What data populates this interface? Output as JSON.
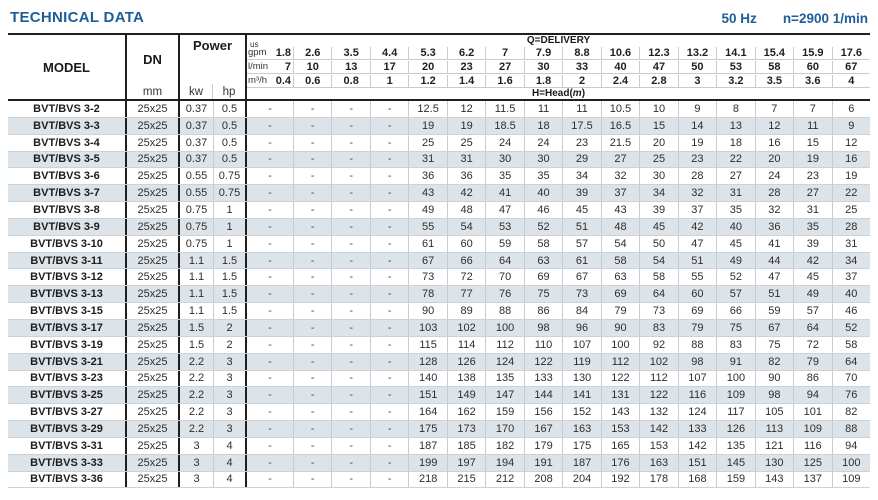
{
  "title": "TECHNICAL DATA",
  "frequency": "50 Hz",
  "speed": "n=2900 1/min",
  "colors": {
    "accent": "#1d5d9b",
    "alt_row": "#dce3e9",
    "border_dark": "#1f1f1f",
    "border_light": "#c7ccd1"
  },
  "table": {
    "model_header": "MODEL",
    "dn_header": "DN",
    "dn_unit": "mm",
    "power_header": "Power",
    "power_unit_kw": "kw",
    "power_unit_hp": "hp",
    "delivery_header": "Q=DELIVERY",
    "head_label": {
      "prefix": "H=Head(",
      "unit": "m",
      "suffix": ")"
    },
    "delivery_rows": [
      {
        "unit_lines": [
          "us",
          "gpm"
        ],
        "values": [
          "1.8",
          "2.6",
          "3.5",
          "4.4",
          "5.3",
          "6.2",
          "7",
          "7.9",
          "8.8",
          "10.6",
          "12.3",
          "13.2",
          "14.1",
          "15.4",
          "15.9",
          "17.6"
        ]
      },
      {
        "unit_lines": [
          "l/min"
        ],
        "values": [
          "7",
          "10",
          "13",
          "17",
          "20",
          "23",
          "27",
          "30",
          "33",
          "40",
          "47",
          "50",
          "53",
          "58",
          "60",
          "67"
        ]
      },
      {
        "unit_lines": [
          "m³/h"
        ],
        "values": [
          "0.4",
          "0.6",
          "0.8",
          "1",
          "1.2",
          "1.4",
          "1.6",
          "1.8",
          "2",
          "2.4",
          "2.8",
          "3",
          "3.2",
          "3.5",
          "3.6",
          "4"
        ]
      }
    ],
    "rows": [
      {
        "model": "BVT/BVS 3-2",
        "dn": "25x25",
        "kw": "0.37",
        "hp": "0.5",
        "heads": [
          "-",
          "-",
          "-",
          "-",
          "12.5",
          "12",
          "11.5",
          "11",
          "11",
          "10.5",
          "10",
          "9",
          "8",
          "7",
          "7",
          "6"
        ]
      },
      {
        "model": "BVT/BVS 3-3",
        "dn": "25x25",
        "kw": "0.37",
        "hp": "0.5",
        "heads": [
          "-",
          "-",
          "-",
          "-",
          "19",
          "19",
          "18.5",
          "18",
          "17.5",
          "16.5",
          "15",
          "14",
          "13",
          "12",
          "11",
          "9"
        ]
      },
      {
        "model": "BVT/BVS 3-4",
        "dn": "25x25",
        "kw": "0.37",
        "hp": "0.5",
        "heads": [
          "-",
          "-",
          "-",
          "-",
          "25",
          "25",
          "24",
          "24",
          "23",
          "21.5",
          "20",
          "19",
          "18",
          "16",
          "15",
          "12"
        ]
      },
      {
        "model": "BVT/BVS 3-5",
        "dn": "25x25",
        "kw": "0.37",
        "hp": "0.5",
        "heads": [
          "-",
          "-",
          "-",
          "-",
          "31",
          "31",
          "30",
          "30",
          "29",
          "27",
          "25",
          "23",
          "22",
          "20",
          "19",
          "16"
        ]
      },
      {
        "model": "BVT/BVS 3-6",
        "dn": "25x25",
        "kw": "0.55",
        "hp": "0.75",
        "heads": [
          "-",
          "-",
          "-",
          "-",
          "36",
          "36",
          "35",
          "35",
          "34",
          "32",
          "30",
          "28",
          "27",
          "24",
          "23",
          "19"
        ]
      },
      {
        "model": "BVT/BVS 3-7",
        "dn": "25x25",
        "kw": "0.55",
        "hp": "0.75",
        "heads": [
          "-",
          "-",
          "-",
          "-",
          "43",
          "42",
          "41",
          "40",
          "39",
          "37",
          "34",
          "32",
          "31",
          "28",
          "27",
          "22"
        ]
      },
      {
        "model": "BVT/BVS 3-8",
        "dn": "25x25",
        "kw": "0.75",
        "hp": "1",
        "heads": [
          "-",
          "-",
          "-",
          "-",
          "49",
          "48",
          "47",
          "46",
          "45",
          "43",
          "39",
          "37",
          "35",
          "32",
          "31",
          "25"
        ]
      },
      {
        "model": "BVT/BVS 3-9",
        "dn": "25x25",
        "kw": "0.75",
        "hp": "1",
        "heads": [
          "-",
          "-",
          "-",
          "-",
          "55",
          "54",
          "53",
          "52",
          "51",
          "48",
          "45",
          "42",
          "40",
          "36",
          "35",
          "28"
        ]
      },
      {
        "model": "BVT/BVS 3-10",
        "dn": "25x25",
        "kw": "0.75",
        "hp": "1",
        "heads": [
          "-",
          "-",
          "-",
          "-",
          "61",
          "60",
          "59",
          "58",
          "57",
          "54",
          "50",
          "47",
          "45",
          "41",
          "39",
          "31"
        ]
      },
      {
        "model": "BVT/BVS 3-11",
        "dn": "25x25",
        "kw": "1.1",
        "hp": "1.5",
        "heads": [
          "-",
          "-",
          "-",
          "-",
          "67",
          "66",
          "64",
          "63",
          "61",
          "58",
          "54",
          "51",
          "49",
          "44",
          "42",
          "34"
        ]
      },
      {
        "model": "BVT/BVS 3-12",
        "dn": "25x25",
        "kw": "1.1",
        "hp": "1.5",
        "heads": [
          "-",
          "-",
          "-",
          "-",
          "73",
          "72",
          "70",
          "69",
          "67",
          "63",
          "58",
          "55",
          "52",
          "47",
          "45",
          "37"
        ]
      },
      {
        "model": "BVT/BVS 3-13",
        "dn": "25x25",
        "kw": "1.1",
        "hp": "1.5",
        "heads": [
          "-",
          "-",
          "-",
          "-",
          "78",
          "77",
          "76",
          "75",
          "73",
          "69",
          "64",
          "60",
          "57",
          "51",
          "49",
          "40"
        ]
      },
      {
        "model": "BVT/BVS 3-15",
        "dn": "25x25",
        "kw": "1.1",
        "hp": "1.5",
        "heads": [
          "-",
          "-",
          "-",
          "-",
          "90",
          "89",
          "88",
          "86",
          "84",
          "79",
          "73",
          "69",
          "66",
          "59",
          "57",
          "46"
        ]
      },
      {
        "model": "BVT/BVS 3-17",
        "dn": "25x25",
        "kw": "1.5",
        "hp": "2",
        "heads": [
          "-",
          "-",
          "-",
          "-",
          "103",
          "102",
          "100",
          "98",
          "96",
          "90",
          "83",
          "79",
          "75",
          "67",
          "64",
          "52"
        ]
      },
      {
        "model": "BVT/BVS 3-19",
        "dn": "25x25",
        "kw": "1.5",
        "hp": "2",
        "heads": [
          "-",
          "-",
          "-",
          "-",
          "115",
          "114",
          "112",
          "110",
          "107",
          "100",
          "92",
          "88",
          "83",
          "75",
          "72",
          "58"
        ]
      },
      {
        "model": "BVT/BVS 3-21",
        "dn": "25x25",
        "kw": "2.2",
        "hp": "3",
        "heads": [
          "-",
          "-",
          "-",
          "-",
          "128",
          "126",
          "124",
          "122",
          "119",
          "112",
          "102",
          "98",
          "91",
          "82",
          "79",
          "64"
        ]
      },
      {
        "model": "BVT/BVS 3-23",
        "dn": "25x25",
        "kw": "2.2",
        "hp": "3",
        "heads": [
          "-",
          "-",
          "-",
          "-",
          "140",
          "138",
          "135",
          "133",
          "130",
          "122",
          "112",
          "107",
          "100",
          "90",
          "86",
          "70"
        ]
      },
      {
        "model": "BVT/BVS 3-25",
        "dn": "25x25",
        "kw": "2.2",
        "hp": "3",
        "heads": [
          "-",
          "-",
          "-",
          "-",
          "151",
          "149",
          "147",
          "144",
          "141",
          "131",
          "122",
          "116",
          "109",
          "98",
          "94",
          "76"
        ]
      },
      {
        "model": "BVT/BVS 3-27",
        "dn": "25x25",
        "kw": "2.2",
        "hp": "3",
        "heads": [
          "-",
          "-",
          "-",
          "-",
          "164",
          "162",
          "159",
          "156",
          "152",
          "143",
          "132",
          "124",
          "117",
          "105",
          "101",
          "82"
        ]
      },
      {
        "model": "BVT/BVS 3-29",
        "dn": "25x25",
        "kw": "2.2",
        "hp": "3",
        "heads": [
          "-",
          "-",
          "-",
          "-",
          "175",
          "173",
          "170",
          "167",
          "163",
          "153",
          "142",
          "133",
          "126",
          "113",
          "109",
          "88"
        ]
      },
      {
        "model": "BVT/BVS 3-31",
        "dn": "25x25",
        "kw": "3",
        "hp": "4",
        "heads": [
          "-",
          "-",
          "-",
          "-",
          "187",
          "185",
          "182",
          "179",
          "175",
          "165",
          "153",
          "142",
          "135",
          "121",
          "116",
          "94"
        ]
      },
      {
        "model": "BVT/BVS 3-33",
        "dn": "25x25",
        "kw": "3",
        "hp": "4",
        "heads": [
          "-",
          "-",
          "-",
          "-",
          "199",
          "197",
          "194",
          "191",
          "187",
          "176",
          "163",
          "151",
          "145",
          "130",
          "125",
          "100"
        ]
      },
      {
        "model": "BVT/BVS 3-36",
        "dn": "25x25",
        "kw": "3",
        "hp": "4",
        "heads": [
          "-",
          "-",
          "-",
          "-",
          "218",
          "215",
          "212",
          "208",
          "204",
          "192",
          "178",
          "168",
          "159",
          "143",
          "137",
          "109"
        ]
      }
    ]
  }
}
